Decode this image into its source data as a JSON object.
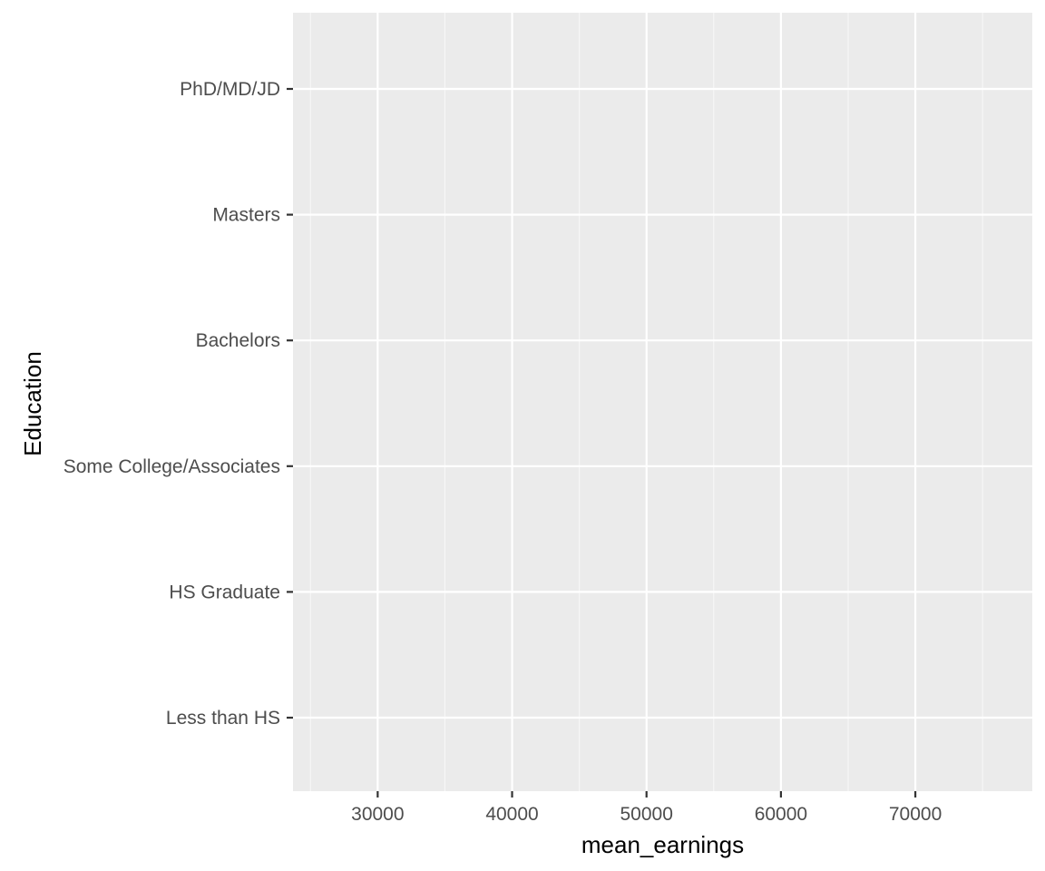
{
  "chart_data": {
    "type": "scatter",
    "title": "",
    "xlabel": "mean_earnings",
    "ylabel": "Education",
    "categories": [
      "Less than HS",
      "HS Graduate",
      "Some College/Associates",
      "Bachelors",
      "Masters",
      "PhD/MD/JD"
    ],
    "x_ticks": [
      30000,
      40000,
      50000,
      60000,
      70000
    ],
    "x_minor_ticks": [
      25000,
      35000,
      45000,
      55000,
      65000,
      75000
    ],
    "xlim": [
      23700,
      78700
    ],
    "series": [],
    "grid": true,
    "legend": "none",
    "colors": {
      "panel_background": "#ebebeb",
      "grid_major": "#ffffff",
      "grid_minor": "#f7f7f7",
      "tick_text": "#4d4d4d",
      "tick_mark": "#333333",
      "axis_title": "#000000"
    }
  }
}
